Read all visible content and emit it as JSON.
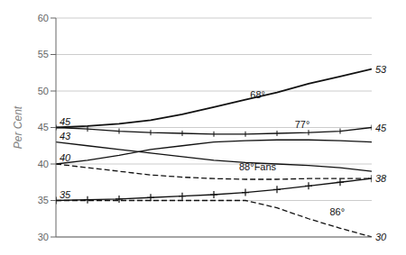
{
  "chart_data": {
    "type": "line",
    "ylabel": "Per Cent",
    "x": [
      0,
      1,
      2,
      3,
      4,
      5,
      6,
      7,
      8,
      9,
      10
    ],
    "xlim": [
      0,
      10
    ],
    "ylim": [
      30,
      60
    ],
    "yticks": [
      30,
      35,
      40,
      45,
      50,
      55,
      60
    ],
    "grid": true,
    "tick_labels": "y",
    "series": [
      {
        "color": "#111111",
        "line_style": "solid",
        "marker": "none",
        "values": [
          45,
          45.2,
          45.5,
          46.0,
          46.8,
          47.8,
          48.8,
          49.8,
          51.0,
          52.0,
          53.0
        ]
      },
      {
        "color": "#111111",
        "line_style": "solid",
        "marker": "|",
        "values": [
          45.0,
          44.8,
          44.5,
          44.3,
          44.2,
          44.1,
          44.1,
          44.2,
          44.3,
          44.5,
          45.0
        ]
      },
      {
        "color": "#111111",
        "line_style": "solid",
        "marker": "none",
        "values": [
          43.0,
          42.5,
          42.0,
          41.5,
          41.0,
          40.5,
          40.2,
          40.0,
          39.8,
          39.5,
          39.0
        ]
      },
      {
        "color": "#111111",
        "line_style": "solid",
        "marker": "none",
        "values": [
          40.0,
          40.5,
          41.2,
          42.0,
          42.5,
          43.0,
          43.2,
          43.3,
          43.3,
          43.2,
          43.0
        ]
      },
      {
        "color": "#111111",
        "line_style": "dashed",
        "marker": "none",
        "values": [
          40.0,
          39.5,
          39.0,
          38.5,
          38.2,
          38.0,
          37.9,
          37.9,
          38.0,
          38.0,
          38.0
        ]
      },
      {
        "color": "#111111",
        "line_style": "dashed",
        "marker": "none",
        "values": [
          35.0,
          35.0,
          35.0,
          35.0,
          35.0,
          35.0,
          35.0,
          34.0,
          32.5,
          31.2,
          30.0
        ]
      },
      {
        "color": "#111111",
        "line_style": "solid",
        "marker": "+",
        "values": [
          35.0,
          35.1,
          35.2,
          35.4,
          35.6,
          35.8,
          36.1,
          36.5,
          37.0,
          37.5,
          38.0
        ]
      }
    ],
    "annotations": [
      {
        "text": "45",
        "x": 0,
        "y": 45
      },
      {
        "text": "43",
        "x": 0,
        "y": 43
      },
      {
        "text": "40",
        "x": 0,
        "y": 40
      },
      {
        "text": "35",
        "x": 0,
        "y": 35
      },
      {
        "text": "53",
        "x": 10,
        "y": 53
      },
      {
        "text": "45",
        "x": 10,
        "y": 45
      },
      {
        "text": "38",
        "x": 10,
        "y": 38
      },
      {
        "text": "30",
        "x": 10,
        "y": 30
      },
      {
        "text": "68°",
        "x": 6.8,
        "y": 48.3
      },
      {
        "text": "77°",
        "x": 7.8,
        "y": 44.2
      },
      {
        "text": "88°Fans",
        "x": 5.8,
        "y": 38.8
      },
      {
        "text": "86°",
        "x": 8.5,
        "y": 32.5
      }
    ]
  }
}
